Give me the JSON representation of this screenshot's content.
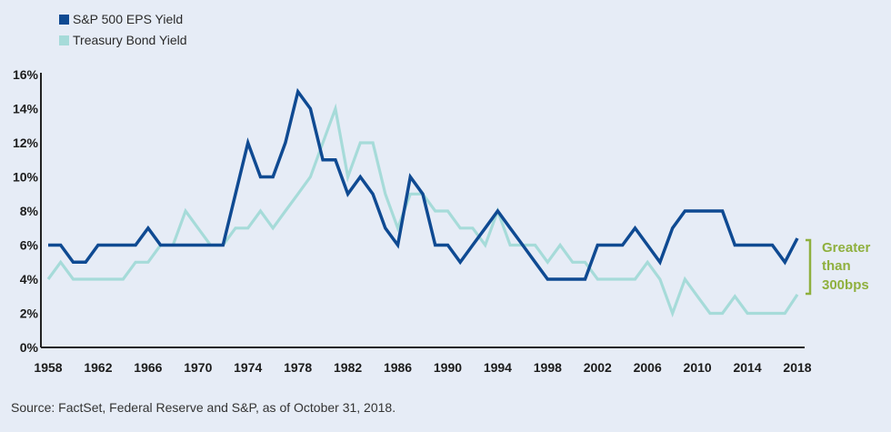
{
  "chart_data": {
    "type": "line",
    "x": [
      1958,
      1959,
      1960,
      1961,
      1962,
      1963,
      1964,
      1965,
      1966,
      1967,
      1968,
      1969,
      1970,
      1971,
      1972,
      1973,
      1974,
      1975,
      1976,
      1977,
      1978,
      1979,
      1980,
      1981,
      1982,
      1983,
      1984,
      1985,
      1986,
      1987,
      1988,
      1989,
      1990,
      1991,
      1992,
      1993,
      1994,
      1995,
      1996,
      1997,
      1998,
      1999,
      2000,
      2001,
      2002,
      2003,
      2004,
      2005,
      2006,
      2007,
      2008,
      2009,
      2010,
      2011,
      2012,
      2013,
      2014,
      2015,
      2016,
      2017,
      2018
    ],
    "series": [
      {
        "name": "S&P 500 EPS Yield",
        "color": "#0f4a92",
        "values": [
          6,
          6,
          5,
          5,
          6,
          6,
          6,
          6,
          7,
          6,
          6,
          6,
          6,
          6,
          6,
          9,
          12,
          10,
          10,
          12,
          15,
          14,
          11,
          11,
          9,
          10,
          9,
          7,
          6,
          10,
          9,
          6,
          6,
          5,
          6,
          7,
          8,
          7,
          6,
          5,
          4,
          4,
          4,
          4,
          6,
          6,
          6,
          7,
          6,
          5,
          7,
          8,
          8,
          8,
          8,
          6,
          6,
          6,
          6,
          5,
          6.4
        ]
      },
      {
        "name": "Treasury Bond Yield",
        "color": "#a6dbd9",
        "values": [
          4,
          5,
          4,
          4,
          4,
          4,
          4,
          5,
          5,
          6,
          6,
          8,
          7,
          6,
          6,
          7,
          7,
          8,
          7,
          8,
          9,
          10,
          12,
          14,
          10,
          12,
          12,
          9,
          7,
          9,
          9,
          8,
          8,
          7,
          7,
          6,
          8,
          6,
          6,
          6,
          5,
          6,
          5,
          5,
          4,
          4,
          4,
          4,
          5,
          4,
          2,
          4,
          3,
          2,
          2,
          3,
          2,
          2,
          2,
          2,
          3.1
        ]
      }
    ],
    "xticks": [
      "1958",
      "1962",
      "1966",
      "1970",
      "1974",
      "1978",
      "1982",
      "1986",
      "1990",
      "1994",
      "1998",
      "2002",
      "2006",
      "2010",
      "2014",
      "2018"
    ],
    "yticks": [
      "0%",
      "2%",
      "4%",
      "6%",
      "8%",
      "10%",
      "12%",
      "14%",
      "16%"
    ],
    "ylim": [
      0,
      16
    ],
    "xlim": [
      1958,
      2018
    ],
    "legend_position": "top-left",
    "grid": false,
    "annotation": "Greater than 300bps",
    "annotation_color": "#8fb03e"
  },
  "source": "Source: FactSet, Federal Reserve and S&P, as of October 31, 2018."
}
